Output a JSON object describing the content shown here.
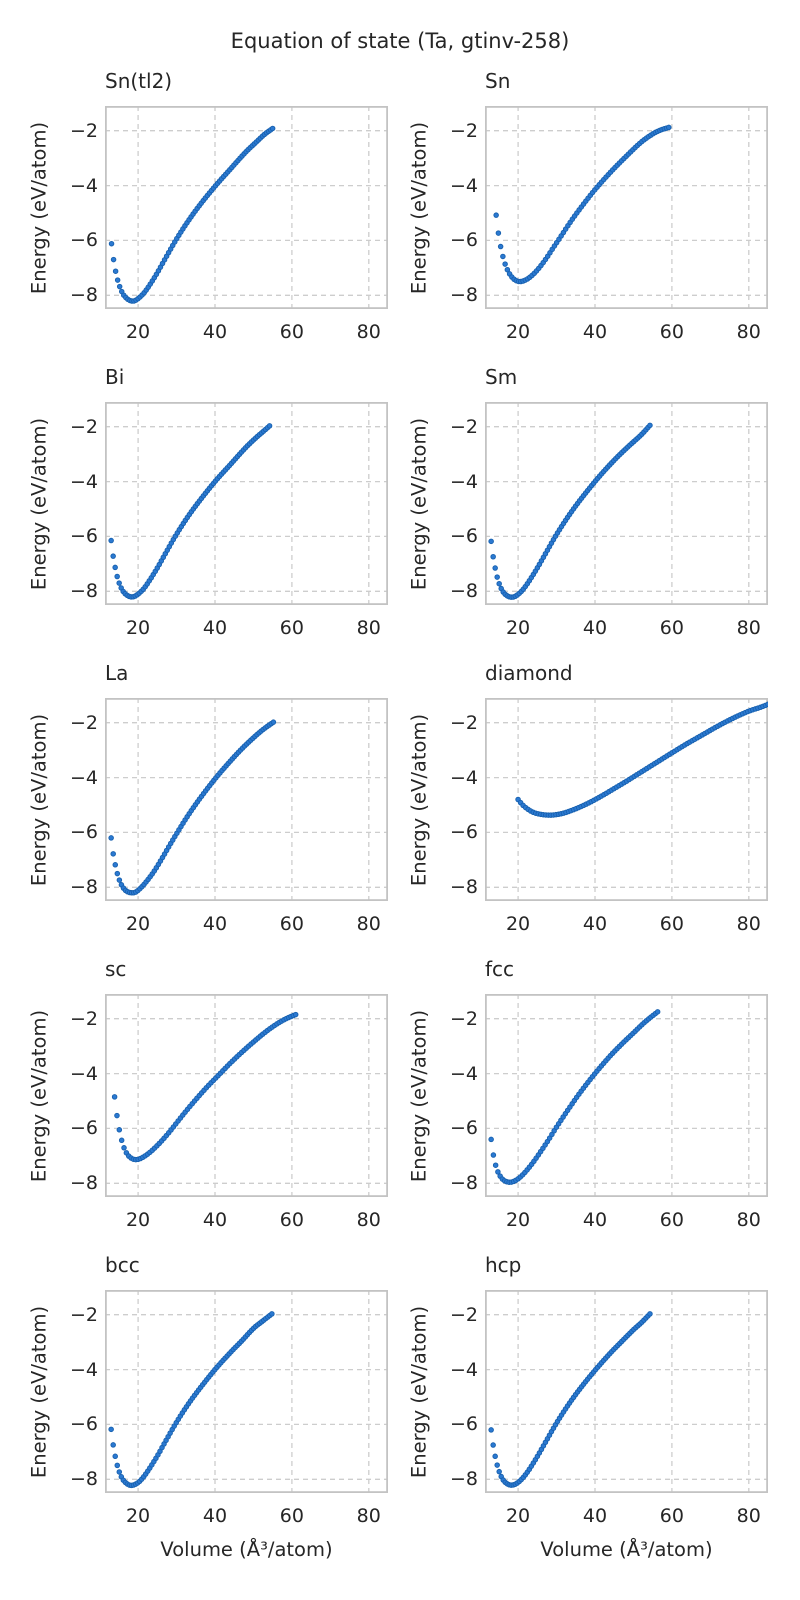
{
  "figure": {
    "title": "Equation of state (Ta, gtinv-258)"
  },
  "chart_data": {
    "type": "scatter",
    "title": "Equation of state (Ta, gtinv-258)",
    "xlabel": "Volume (Å³/atom)",
    "ylabel": "Energy (eV/atom)",
    "xlim": [
      11.4,
      85
    ],
    "ylim": [
      -8.5,
      -1.1
    ],
    "xticks": [
      20,
      40,
      60,
      80
    ],
    "yticks": [
      -2,
      -4,
      -6,
      -8
    ],
    "xtick_labels": [
      "20",
      "40",
      "60",
      "80"
    ],
    "ytick_labels": [
      "−2",
      "−4",
      "−6",
      "−8"
    ],
    "grid_style": "dashed",
    "legend": "none",
    "marker": {
      "shape": "circle",
      "fill": "#2b79d1",
      "edge": "#1760ae",
      "radius": 2.3
    },
    "colors": {
      "grid": "#cdcdcd",
      "spine": "#c3c3c3",
      "text": "#262626",
      "background": "#ffffff"
    },
    "layout": {
      "rows": 5,
      "cols": 2
    },
    "subplots": [
      {
        "title": "Sn(tl2)",
        "n_points": 80,
        "points": [
          [
            13.1,
            -6.12
          ],
          [
            13.6,
            -6.67
          ],
          [
            14.1,
            -7.08
          ],
          [
            14.7,
            -7.45
          ],
          [
            15.4,
            -7.75
          ],
          [
            16.2,
            -7.98
          ],
          [
            17.1,
            -8.12
          ],
          [
            18.1,
            -8.2
          ],
          [
            19.1,
            -8.2
          ],
          [
            20.2,
            -8.1
          ],
          [
            21.5,
            -7.92
          ],
          [
            23,
            -7.63
          ],
          [
            25,
            -7.18
          ],
          [
            27,
            -6.68
          ],
          [
            30,
            -5.95
          ],
          [
            33,
            -5.3
          ],
          [
            36,
            -4.72
          ],
          [
            40,
            -4.03
          ],
          [
            44,
            -3.4
          ],
          [
            48,
            -2.78
          ],
          [
            51,
            -2.38
          ],
          [
            53,
            -2.12
          ],
          [
            55,
            -1.92
          ]
        ]
      },
      {
        "title": "Sn",
        "n_points": 78,
        "points": [
          [
            14.3,
            -5.08
          ],
          [
            14.8,
            -5.65
          ],
          [
            15.3,
            -6.1
          ],
          [
            15.9,
            -6.5
          ],
          [
            16.6,
            -6.85
          ],
          [
            17.4,
            -7.12
          ],
          [
            18.3,
            -7.32
          ],
          [
            19.3,
            -7.45
          ],
          [
            20.3,
            -7.5
          ],
          [
            21.5,
            -7.47
          ],
          [
            23,
            -7.35
          ],
          [
            25,
            -7.08
          ],
          [
            27,
            -6.72
          ],
          [
            29,
            -6.3
          ],
          [
            31,
            -5.88
          ],
          [
            34,
            -5.25
          ],
          [
            37,
            -4.68
          ],
          [
            40,
            -4.15
          ],
          [
            44,
            -3.52
          ],
          [
            48,
            -2.95
          ],
          [
            52,
            -2.42
          ],
          [
            55,
            -2.12
          ],
          [
            57,
            -1.98
          ],
          [
            59.2,
            -1.88
          ]
        ]
      },
      {
        "title": "Bi",
        "n_points": 80,
        "points": [
          [
            13,
            -6.15
          ],
          [
            13.5,
            -6.7
          ],
          [
            14,
            -7.1
          ],
          [
            14.6,
            -7.48
          ],
          [
            15.3,
            -7.78
          ],
          [
            16.1,
            -8.0
          ],
          [
            17,
            -8.13
          ],
          [
            18,
            -8.2
          ],
          [
            19,
            -8.19
          ],
          [
            20.2,
            -8.08
          ],
          [
            21.5,
            -7.9
          ],
          [
            23,
            -7.6
          ],
          [
            25,
            -7.15
          ],
          [
            27,
            -6.65
          ],
          [
            30,
            -5.92
          ],
          [
            33,
            -5.27
          ],
          [
            36,
            -4.7
          ],
          [
            40,
            -4.0
          ],
          [
            44,
            -3.38
          ],
          [
            48,
            -2.76
          ],
          [
            51,
            -2.36
          ],
          [
            52.5,
            -2.18
          ],
          [
            54.2,
            -1.97
          ]
        ]
      },
      {
        "title": "Sm",
        "n_points": 80,
        "points": [
          [
            13,
            -6.18
          ],
          [
            13.5,
            -6.72
          ],
          [
            14,
            -7.12
          ],
          [
            14.6,
            -7.5
          ],
          [
            15.3,
            -7.8
          ],
          [
            16.1,
            -8.02
          ],
          [
            17,
            -8.15
          ],
          [
            18,
            -8.21
          ],
          [
            19,
            -8.2
          ],
          [
            20.2,
            -8.09
          ],
          [
            21.5,
            -7.9
          ],
          [
            23,
            -7.6
          ],
          [
            25,
            -7.15
          ],
          [
            27,
            -6.66
          ],
          [
            30,
            -5.93
          ],
          [
            33,
            -5.28
          ],
          [
            36,
            -4.7
          ],
          [
            40,
            -4.0
          ],
          [
            43,
            -3.52
          ],
          [
            46,
            -3.08
          ],
          [
            49,
            -2.68
          ],
          [
            52,
            -2.3
          ],
          [
            54.3,
            -1.95
          ]
        ]
      },
      {
        "title": "La",
        "n_points": 80,
        "points": [
          [
            13,
            -6.2
          ],
          [
            13.5,
            -6.75
          ],
          [
            14.1,
            -7.2
          ],
          [
            14.7,
            -7.55
          ],
          [
            15.4,
            -7.83
          ],
          [
            16.2,
            -8.03
          ],
          [
            17.1,
            -8.15
          ],
          [
            18.2,
            -8.2
          ],
          [
            19.3,
            -8.18
          ],
          [
            20.5,
            -8.05
          ],
          [
            22,
            -7.82
          ],
          [
            24,
            -7.45
          ],
          [
            26,
            -7.0
          ],
          [
            28,
            -6.52
          ],
          [
            30,
            -6.05
          ],
          [
            33,
            -5.38
          ],
          [
            36,
            -4.78
          ],
          [
            40,
            -4.05
          ],
          [
            44,
            -3.4
          ],
          [
            47,
            -2.95
          ],
          [
            50,
            -2.55
          ],
          [
            52.5,
            -2.25
          ],
          [
            55.2,
            -1.98
          ]
        ]
      },
      {
        "title": "diamond",
        "n_points": 100,
        "points": [
          [
            20,
            -4.8
          ],
          [
            21.2,
            -5.0
          ],
          [
            22.5,
            -5.15
          ],
          [
            24,
            -5.27
          ],
          [
            25.5,
            -5.33
          ],
          [
            27,
            -5.36
          ],
          [
            28.5,
            -5.37
          ],
          [
            30,
            -5.35
          ],
          [
            31.5,
            -5.31
          ],
          [
            33.5,
            -5.22
          ],
          [
            36,
            -5.08
          ],
          [
            39,
            -4.88
          ],
          [
            42,
            -4.65
          ],
          [
            45,
            -4.4
          ],
          [
            48,
            -4.15
          ],
          [
            52,
            -3.8
          ],
          [
            56,
            -3.45
          ],
          [
            60,
            -3.1
          ],
          [
            64,
            -2.76
          ],
          [
            68,
            -2.44
          ],
          [
            72,
            -2.12
          ],
          [
            76,
            -1.83
          ],
          [
            80,
            -1.58
          ],
          [
            83,
            -1.44
          ],
          [
            85,
            -1.33
          ]
        ]
      },
      {
        "title": "sc",
        "n_points": 78,
        "points": [
          [
            13.9,
            -4.85
          ],
          [
            14.4,
            -5.42
          ],
          [
            14.9,
            -5.88
          ],
          [
            15.5,
            -6.3
          ],
          [
            16.2,
            -6.65
          ],
          [
            17,
            -6.9
          ],
          [
            17.9,
            -7.05
          ],
          [
            19,
            -7.13
          ],
          [
            20.2,
            -7.12
          ],
          [
            21.5,
            -7.03
          ],
          [
            23,
            -6.88
          ],
          [
            25,
            -6.62
          ],
          [
            27,
            -6.32
          ],
          [
            29,
            -5.98
          ],
          [
            32,
            -5.45
          ],
          [
            35,
            -4.95
          ],
          [
            38,
            -4.48
          ],
          [
            41,
            -4.05
          ],
          [
            44,
            -3.62
          ],
          [
            47,
            -3.22
          ],
          [
            50,
            -2.85
          ],
          [
            53,
            -2.5
          ],
          [
            56,
            -2.2
          ],
          [
            58.5,
            -2.0
          ],
          [
            61,
            -1.85
          ]
        ]
      },
      {
        "title": "fcc",
        "n_points": 75,
        "points": [
          [
            13,
            -6.4
          ],
          [
            13.5,
            -6.9
          ],
          [
            14,
            -7.25
          ],
          [
            14.6,
            -7.53
          ],
          [
            15.3,
            -7.73
          ],
          [
            16.1,
            -7.87
          ],
          [
            17,
            -7.94
          ],
          [
            18.1,
            -7.96
          ],
          [
            19.3,
            -7.9
          ],
          [
            20.6,
            -7.77
          ],
          [
            22,
            -7.57
          ],
          [
            24,
            -7.22
          ],
          [
            26,
            -6.82
          ],
          [
            28,
            -6.4
          ],
          [
            30,
            -5.95
          ],
          [
            33,
            -5.32
          ],
          [
            36,
            -4.72
          ],
          [
            40,
            -4.0
          ],
          [
            44,
            -3.35
          ],
          [
            47,
            -2.92
          ],
          [
            50,
            -2.52
          ],
          [
            53,
            -2.12
          ],
          [
            56.3,
            -1.75
          ]
        ]
      },
      {
        "title": "bcc",
        "n_points": 80,
        "points": [
          [
            13,
            -6.18
          ],
          [
            13.5,
            -6.72
          ],
          [
            14,
            -7.12
          ],
          [
            14.6,
            -7.5
          ],
          [
            15.3,
            -7.8
          ],
          [
            16.1,
            -8.02
          ],
          [
            17,
            -8.15
          ],
          [
            18,
            -8.22
          ],
          [
            19,
            -8.2
          ],
          [
            20.2,
            -8.1
          ],
          [
            21.5,
            -7.9
          ],
          [
            23,
            -7.6
          ],
          [
            25,
            -7.15
          ],
          [
            27,
            -6.65
          ],
          [
            30,
            -5.92
          ],
          [
            33,
            -5.27
          ],
          [
            36,
            -4.7
          ],
          [
            40,
            -4.0
          ],
          [
            44,
            -3.38
          ],
          [
            47,
            -2.95
          ],
          [
            50,
            -2.5
          ],
          [
            52.5,
            -2.22
          ],
          [
            54.8,
            -1.97
          ]
        ]
      },
      {
        "title": "hcp",
        "n_points": 80,
        "points": [
          [
            13,
            -6.2
          ],
          [
            13.5,
            -6.73
          ],
          [
            14,
            -7.13
          ],
          [
            14.6,
            -7.5
          ],
          [
            15.3,
            -7.8
          ],
          [
            16.1,
            -8.02
          ],
          [
            17,
            -8.15
          ],
          [
            18,
            -8.21
          ],
          [
            19.1,
            -8.19
          ],
          [
            20.3,
            -8.08
          ],
          [
            21.6,
            -7.89
          ],
          [
            23,
            -7.62
          ],
          [
            25,
            -7.17
          ],
          [
            27,
            -6.68
          ],
          [
            30,
            -5.95
          ],
          [
            33,
            -5.3
          ],
          [
            36,
            -4.72
          ],
          [
            40,
            -4.03
          ],
          [
            44,
            -3.4
          ],
          [
            47,
            -2.97
          ],
          [
            50,
            -2.55
          ],
          [
            52,
            -2.3
          ],
          [
            54.3,
            -1.97
          ]
        ]
      }
    ]
  }
}
